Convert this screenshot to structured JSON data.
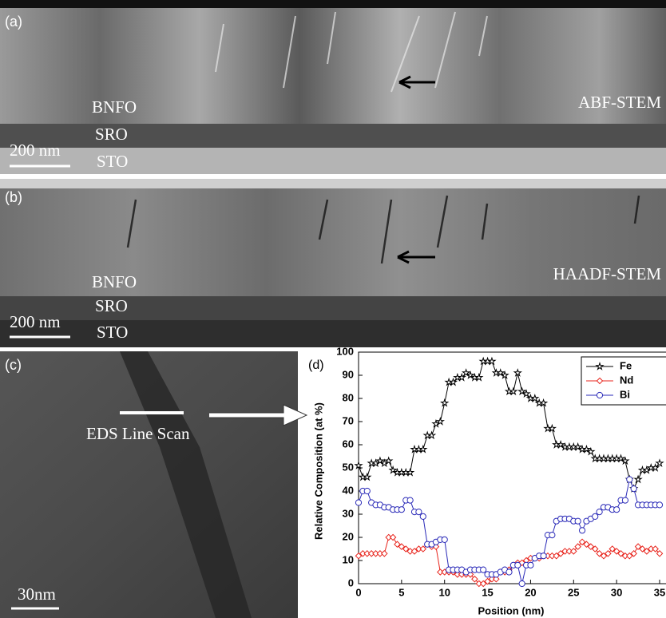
{
  "panels": {
    "a": {
      "label": "(a)",
      "film": "BNFO",
      "electrode": "SRO",
      "substrate": "STO",
      "scale": "200 nm",
      "mode": "ABF-STEM"
    },
    "b": {
      "label": "(b)",
      "film": "BNFO",
      "electrode": "SRO",
      "substrate": "STO",
      "scale": "200 nm",
      "mode": "HAADF-STEM"
    },
    "c": {
      "label": "(c)",
      "scan": "EDS Line Scan",
      "scale": "30nm"
    }
  },
  "chart_data": {
    "type": "line",
    "panel_label": "(d)",
    "x_label": "Position (nm)",
    "y_label": "Relative Composition (at %)",
    "x": [
      0,
      0.5,
      1,
      1.5,
      2,
      2.5,
      3,
      3.5,
      4,
      4.5,
      5,
      5.5,
      6,
      6.5,
      7,
      7.5,
      8,
      8.5,
      9,
      9.5,
      10,
      10.5,
      11,
      11.5,
      12,
      12.5,
      13,
      13.5,
      14,
      14.5,
      15,
      15.5,
      16,
      16.5,
      17,
      17.5,
      18,
      18.5,
      19,
      19.5,
      20,
      20.5,
      21,
      21.5,
      22,
      22.5,
      23,
      23.5,
      24,
      24.5,
      25,
      25.5,
      26,
      26.5,
      27,
      27.5,
      28,
      28.5,
      29,
      29.5,
      30,
      30.5,
      31,
      31.5,
      32,
      32.5,
      33,
      33.5,
      34,
      34.5,
      35
    ],
    "series": [
      {
        "name": "Fe",
        "color": "#000000",
        "marker": "star",
        "values": [
          51,
          46,
          46,
          52,
          52,
          53,
          52,
          53,
          49,
          48,
          48,
          48,
          48,
          58,
          58,
          58,
          64,
          64,
          69,
          70,
          78,
          87,
          87,
          89,
          89,
          91,
          90,
          89,
          89,
          96,
          96,
          96,
          91,
          91,
          90,
          83,
          83,
          91,
          83,
          82,
          80,
          80,
          78,
          78,
          67,
          67,
          60,
          60,
          59,
          59,
          59,
          59,
          58,
          58,
          57,
          54,
          54,
          54,
          54,
          54,
          54,
          54,
          53,
          45,
          41,
          45,
          49,
          49,
          50,
          50,
          52
        ]
      },
      {
        "name": "Nd",
        "color": "#e8241c",
        "marker": "diamond",
        "values": [
          12,
          13,
          13,
          13,
          13,
          13,
          13,
          20,
          20,
          17,
          16,
          15,
          14,
          14,
          15,
          15,
          17,
          16,
          16,
          5,
          5,
          5,
          5,
          4,
          4,
          4,
          4,
          2,
          0,
          0,
          1,
          2,
          2,
          5,
          5,
          6,
          8,
          9,
          9,
          10,
          11,
          11,
          11,
          12,
          12,
          12,
          12,
          13,
          14,
          14,
          14,
          16,
          18,
          17,
          16,
          15,
          13,
          12,
          13,
          15,
          14,
          13,
          12,
          12,
          13,
          16,
          15,
          14,
          15,
          15,
          13
        ]
      },
      {
        "name": "Bi",
        "color": "#2a2ab8",
        "marker": "circle",
        "values": [
          35,
          40,
          40,
          35,
          34,
          34,
          33,
          33,
          32,
          32,
          32,
          36,
          36,
          31,
          31,
          29,
          17,
          17,
          18,
          19,
          19,
          6,
          6,
          6,
          6,
          5,
          6,
          6,
          6,
          6,
          4,
          4,
          4,
          5,
          6,
          5,
          8,
          8,
          0,
          8,
          8,
          11,
          12,
          12,
          21,
          21,
          27,
          28,
          28,
          28,
          27,
          27,
          23,
          27,
          28,
          29,
          31,
          33,
          33,
          32,
          32,
          36,
          36,
          45,
          41,
          34,
          34,
          34,
          34,
          34,
          34
        ]
      }
    ],
    "xlim": [
      0,
      35
    ],
    "xticks": [
      0,
      5,
      10,
      15,
      20,
      25,
      30,
      35
    ],
    "ylim": [
      0,
      100
    ],
    "yticks": [
      0,
      10,
      20,
      30,
      40,
      50,
      60,
      70,
      80,
      90,
      100
    ],
    "legend": "top-right"
  }
}
